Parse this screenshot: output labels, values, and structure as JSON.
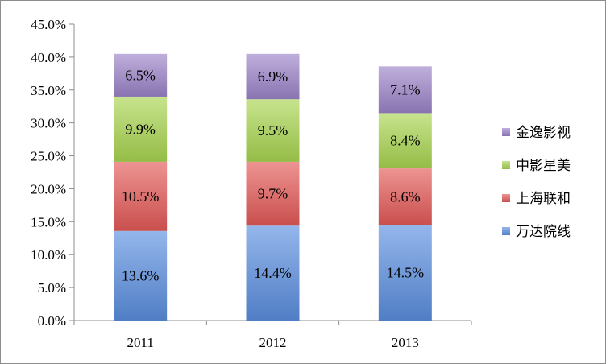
{
  "chart_data": {
    "type": "bar",
    "stacked": true,
    "categories": [
      "2011",
      "2012",
      "2013"
    ],
    "series": [
      {
        "name": "万达院线",
        "values": [
          13.6,
          14.4,
          14.5
        ],
        "labels": [
          "13.6%",
          "14.4%",
          "14.5%"
        ],
        "color": "#5b8fe0"
      },
      {
        "name": "上海联和",
        "values": [
          10.5,
          9.7,
          8.6
        ],
        "labels": [
          "10.5%",
          "9.7%",
          "8.6%"
        ],
        "color": "#e45a58"
      },
      {
        "name": "中影星美",
        "values": [
          9.9,
          9.5,
          8.4
        ],
        "labels": [
          "9.9%",
          "9.5%",
          "8.4%"
        ],
        "color": "#a9d64f"
      },
      {
        "name": "金逸影视",
        "values": [
          6.5,
          6.9,
          7.1
        ],
        "labels": [
          "6.5%",
          "6.9%",
          "7.1%"
        ],
        "color": "#9c84c9"
      }
    ],
    "y_ticks": [
      "0.0%",
      "5.0%",
      "10.0%",
      "15.0%",
      "20.0%",
      "25.0%",
      "30.0%",
      "35.0%",
      "40.0%",
      "45.0%"
    ],
    "ylim": [
      0,
      45
    ],
    "title": "",
    "xlabel": "",
    "ylabel": "",
    "legend_position": "right",
    "grid": false
  }
}
